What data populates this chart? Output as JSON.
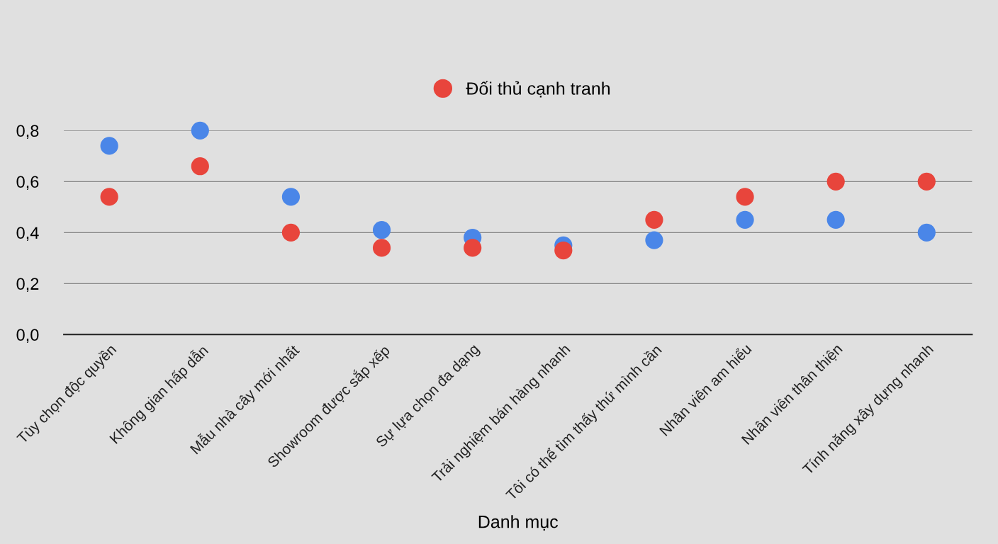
{
  "chart_data": {
    "type": "scatter",
    "xlabel": "Danh mục",
    "categories": [
      "Tùy chọn độc quyền",
      "Không gian hấp dẫn",
      "Mẫu nhà cây mới nhất",
      "Showroom được sắp xếp",
      "Sự lựa chọn đa dạng",
      "Trải nghiệm bán hàng nhanh",
      "Tôi có thể tìm thấy thứ mình cần",
      "Nhân viên am hiểu",
      "Nhân viên thân thiện",
      "Tính năng xây dựng nhanh"
    ],
    "series": [
      {
        "color": "#4a86e8",
        "values": [
          0.74,
          0.8,
          0.54,
          0.41,
          0.38,
          0.35,
          0.37,
          0.45,
          0.45,
          0.4
        ]
      },
      {
        "name": "Đối thủ cạnh tranh",
        "color": "#e8453c",
        "values": [
          0.54,
          0.66,
          0.4,
          0.34,
          0.34,
          0.33,
          0.45,
          0.54,
          0.6,
          0.6
        ]
      }
    ],
    "ylim": [
      0,
      0.8
    ],
    "yticks": [
      {
        "value": 0,
        "label": "0,0"
      },
      {
        "value": 0.2,
        "label": "0,2"
      },
      {
        "value": 0.4,
        "label": "0,4"
      },
      {
        "value": 0.6,
        "label": "0,6"
      },
      {
        "value": 0.8,
        "label": "0,8"
      }
    ],
    "grid": "y",
    "legend": "top",
    "marker": "circle"
  }
}
